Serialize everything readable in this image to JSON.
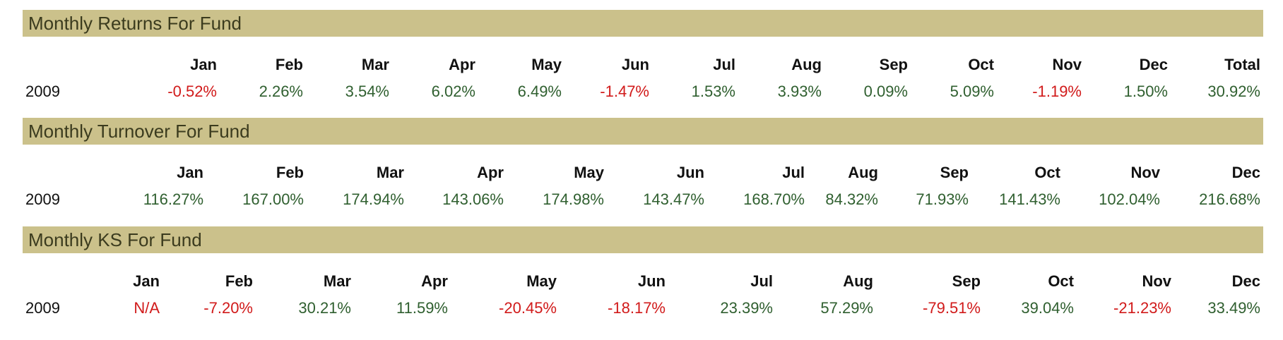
{
  "returns": {
    "title": "Monthly Returns For Fund",
    "year": "2009",
    "headers": [
      "Jan",
      "Feb",
      "Mar",
      "Apr",
      "May",
      "Jun",
      "Jul",
      "Aug",
      "Sep",
      "Oct",
      "Nov",
      "Dec",
      "Total"
    ],
    "values": [
      "-0.52%",
      "2.26%",
      "3.54%",
      "6.02%",
      "6.49%",
      "-1.47%",
      "1.53%",
      "3.93%",
      "0.09%",
      "5.09%",
      "-1.19%",
      "1.50%",
      "30.92%"
    ]
  },
  "turnover": {
    "title": "Monthly Turnover For Fund",
    "year": "2009",
    "headers": [
      "Jan",
      "Feb",
      "Mar",
      "Apr",
      "May",
      "Jun",
      "Jul",
      "Aug",
      "Sep",
      "Oct",
      "Nov",
      "Dec"
    ],
    "values": [
      "116.27%",
      "167.00%",
      "174.94%",
      "143.06%",
      "174.98%",
      "143.47%",
      "168.70%",
      "84.32%",
      "71.93%",
      "141.43%",
      "102.04%",
      "216.68%"
    ]
  },
  "ks": {
    "title": "Monthly KS For Fund",
    "year": "2009",
    "headers": [
      "Jan",
      "Feb",
      "Mar",
      "Apr",
      "May",
      "Jun",
      "Jul",
      "Aug",
      "Sep",
      "Oct",
      "Nov",
      "Dec"
    ],
    "values": [
      "N/A",
      "-7.20%",
      "30.21%",
      "11.59%",
      "-20.45%",
      "-18.17%",
      "23.39%",
      "57.29%",
      "-79.51%",
      "39.04%",
      "-21.23%",
      "33.49%"
    ]
  },
  "colors": {
    "header_bar": "#cbc18b",
    "positive": "#2f5f2f",
    "negative": "#d11a1a"
  }
}
